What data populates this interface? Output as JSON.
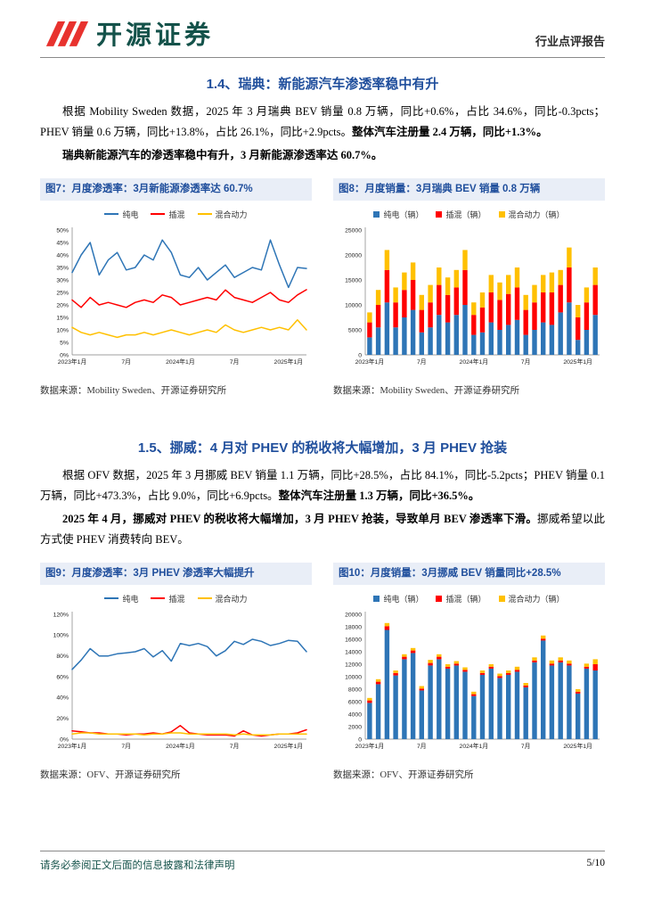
{
  "header": {
    "brand": "开源证券",
    "report_type": "行业点评报告"
  },
  "sections": [
    {
      "title": "1.4、瑞典：新能源汽车渗透率稳中有升",
      "paragraphs": [
        [
          {
            "t": "根据 Mobility Sweden 数据，2025 年 3 月瑞典 BEV 销量 0.8 万辆，同比+0.6%，占比 34.6%，同比-0.3pcts；PHEV 销量 0.6 万辆，同比+13.8%，占比 26.1%，同比+2.9pcts。",
            "b": false
          },
          {
            "t": "整体汽车注册量 2.4 万辆，同比+1.3%。",
            "b": true
          }
        ],
        [
          {
            "t": "瑞典新能源汽车的渗透率稳中有升，3 月新能源渗透率达 60.7%。",
            "b": true
          }
        ]
      ]
    },
    {
      "title": "1.5、挪威：4 月对 PHEV 的税收将大幅增加，3 月 PHEV 抢装",
      "paragraphs": [
        [
          {
            "t": "根据 OFV 数据，2025 年 3 月挪威 BEV 销量 1.1 万辆，同比+28.5%，占比 84.1%，同比-5.2pcts；PHEV 销量 0.1 万辆，同比+473.3%，占比 9.0%，同比+6.9pcts。",
            "b": false
          },
          {
            "t": "整体汽车注册量 1.3 万辆，同比+36.5%。",
            "b": true
          }
        ],
        [
          {
            "t": "2025 年 4 月，挪威对 PHEV 的税收将大幅增加，3 月 PHEV 抢装，导致单月 BEV 渗透率下滑。",
            "b": true
          },
          {
            "t": "挪威希望以此方式使 PHEV 消费转向 BEV。",
            "b": false
          }
        ]
      ]
    }
  ],
  "chart_data": [
    {
      "id": "fig7",
      "type": "line",
      "title": "图7：月度渗透率：3月新能源渗透率达 60.7%",
      "source": "数据来源：Mobility Sweden、开源证券研究所",
      "colors": [
        "#2e75b6",
        "#ff0000",
        "#ffc000"
      ],
      "ylim": [
        0,
        50
      ],
      "yticks": [
        "0%",
        "5%",
        "10%",
        "15%",
        "20%",
        "25%",
        "30%",
        "35%",
        "40%",
        "45%",
        "50%"
      ],
      "xticks": [
        {
          "i": 0,
          "label": "2023年1月"
        },
        {
          "i": 6,
          "label": "7月"
        },
        {
          "i": 12,
          "label": "2024年1月"
        },
        {
          "i": 18,
          "label": "7月"
        },
        {
          "i": 24,
          "label": "2025年1月"
        }
      ],
      "series": [
        {
          "name": "纯电",
          "values": [
            33,
            40,
            45,
            32,
            38,
            41,
            34,
            35,
            40,
            38,
            46,
            41,
            32,
            31,
            35,
            30,
            33,
            36,
            31,
            33,
            35,
            34,
            46,
            36,
            27,
            35,
            34.6
          ]
        },
        {
          "name": "插混",
          "values": [
            22,
            19,
            23,
            20,
            21,
            20,
            19,
            21,
            22,
            21,
            24,
            23,
            20,
            21,
            22,
            23,
            22,
            26,
            23,
            22,
            21,
            23,
            25,
            22,
            21,
            24,
            26.1
          ]
        },
        {
          "name": "混合动力",
          "values": [
            11,
            9,
            8,
            9,
            8,
            7,
            8,
            8,
            9,
            8,
            9,
            10,
            9,
            8,
            9,
            10,
            9,
            12,
            10,
            9,
            10,
            11,
            10,
            11,
            10,
            14,
            10
          ]
        }
      ]
    },
    {
      "id": "fig8",
      "type": "bar",
      "title": "图8：月度销量：3月瑞典 BEV 销量 0.8 万辆",
      "source": "数据来源：Mobility Sweden、开源证券研究所",
      "colors": [
        "#2e75b6",
        "#ff0000",
        "#ffc000"
      ],
      "ylim": [
        0,
        25000
      ],
      "yticks": [
        "0",
        "5000",
        "10000",
        "15000",
        "20000",
        "25000"
      ],
      "xticks": [
        {
          "i": 0,
          "label": "2023年1月"
        },
        {
          "i": 6,
          "label": "7月"
        },
        {
          "i": 12,
          "label": "2024年1月"
        },
        {
          "i": 18,
          "label": "7月"
        },
        {
          "i": 24,
          "label": "2025年1月"
        }
      ],
      "series": [
        {
          "name": "纯电（辆）",
          "values": [
            3500,
            5500,
            10500,
            5500,
            7500,
            9000,
            4500,
            5500,
            8000,
            6500,
            8000,
            10000,
            4000,
            4500,
            6500,
            5000,
            6000,
            7000,
            4000,
            5000,
            6500,
            6000,
            8500,
            10500,
            3000,
            5000,
            8000
          ]
        },
        {
          "name": "插混（辆）",
          "values": [
            3000,
            4500,
            6500,
            5000,
            5500,
            6000,
            4500,
            5000,
            6000,
            5500,
            5500,
            7000,
            4000,
            5000,
            6000,
            6000,
            6200,
            6500,
            5000,
            5500,
            6000,
            6500,
            5500,
            7000,
            4500,
            5500,
            6000
          ]
        },
        {
          "name": "混合动力（辆）",
          "values": [
            2000,
            3000,
            4000,
            3000,
            3500,
            3500,
            3000,
            3500,
            3500,
            3500,
            3500,
            4000,
            2500,
            3000,
            3500,
            3500,
            3800,
            4000,
            3000,
            3500,
            3500,
            4000,
            3000,
            4000,
            2500,
            3000,
            3500
          ]
        }
      ]
    },
    {
      "id": "fig9",
      "type": "line",
      "title": "图9：月度渗透率：3月 PHEV 渗透率大幅提升",
      "source": "数据来源：OFV、开源证券研究所",
      "colors": [
        "#2e75b6",
        "#ff0000",
        "#ffc000"
      ],
      "ylim": [
        0,
        120
      ],
      "yticks": [
        "0%",
        "20%",
        "40%",
        "60%",
        "80%",
        "100%",
        "120%"
      ],
      "xticks": [
        {
          "i": 0,
          "label": "2023年1月"
        },
        {
          "i": 6,
          "label": "7月"
        },
        {
          "i": 12,
          "label": "2024年1月"
        },
        {
          "i": 18,
          "label": "7月"
        },
        {
          "i": 24,
          "label": "2025年1月"
        }
      ],
      "series": [
        {
          "name": "纯电",
          "values": [
            67,
            76,
            87,
            80,
            80,
            82,
            83,
            84,
            87,
            79,
            85,
            75,
            92,
            90,
            92,
            89,
            80,
            85,
            94,
            91,
            96,
            94,
            90,
            92,
            95,
            94,
            84.1
          ]
        },
        {
          "name": "插混",
          "values": [
            8,
            7,
            6,
            6,
            5,
            5,
            4,
            5,
            5,
            6,
            5,
            7,
            13,
            6,
            5,
            4,
            4,
            4,
            3,
            8,
            4,
            3,
            4,
            5,
            5,
            6,
            9
          ]
        },
        {
          "name": "混合动力",
          "values": [
            5,
            6,
            6,
            5,
            5,
            5,
            5,
            5,
            4,
            5,
            5,
            6,
            6,
            5,
            5,
            5,
            5,
            5,
            4,
            5,
            4,
            4,
            4,
            5,
            5,
            5,
            5
          ]
        }
      ]
    },
    {
      "id": "fig10",
      "type": "bar",
      "title": "图10：月度销量：3月挪威 BEV 销量同比+28.5%",
      "source": "数据来源：OFV、开源证券研究所",
      "colors": [
        "#2e75b6",
        "#ff0000",
        "#ffc000"
      ],
      "ylim": [
        0,
        20000
      ],
      "yticks": [
        "0",
        "2000",
        "4000",
        "6000",
        "8000",
        "10000",
        "12000",
        "14000",
        "16000",
        "18000",
        "20000"
      ],
      "xticks": [
        {
          "i": 0,
          "label": "2023年1月"
        },
        {
          "i": 6,
          "label": "7月"
        },
        {
          "i": 12,
          "label": "2024年1月"
        },
        {
          "i": 18,
          "label": "7月"
        },
        {
          "i": 24,
          "label": "2025年1月"
        }
      ],
      "series": [
        {
          "name": "纯电（辆）",
          "values": [
            5800,
            8800,
            17500,
            10200,
            12800,
            13800,
            7800,
            11800,
            12800,
            11300,
            11800,
            10800,
            6900,
            10300,
            11300,
            9800,
            10300,
            10800,
            8300,
            12300,
            15800,
            11800,
            12300,
            11800,
            7300,
            11300,
            11000
          ]
        },
        {
          "name": "插混（辆）",
          "values": [
            400,
            400,
            600,
            400,
            400,
            400,
            300,
            400,
            400,
            300,
            300,
            300,
            300,
            300,
            300,
            300,
            300,
            300,
            300,
            300,
            300,
            300,
            300,
            300,
            300,
            300,
            1000
          ]
        },
        {
          "name": "混合动力（辆）",
          "values": [
            400,
            400,
            500,
            400,
            400,
            400,
            400,
            500,
            400,
            400,
            400,
            400,
            400,
            400,
            400,
            400,
            400,
            500,
            400,
            500,
            500,
            500,
            500,
            500,
            400,
            500,
            800
          ]
        }
      ]
    }
  ],
  "footer": {
    "disclaimer": "请务必参阅正文后面的信息披露和法律声明",
    "page": "5/10"
  }
}
